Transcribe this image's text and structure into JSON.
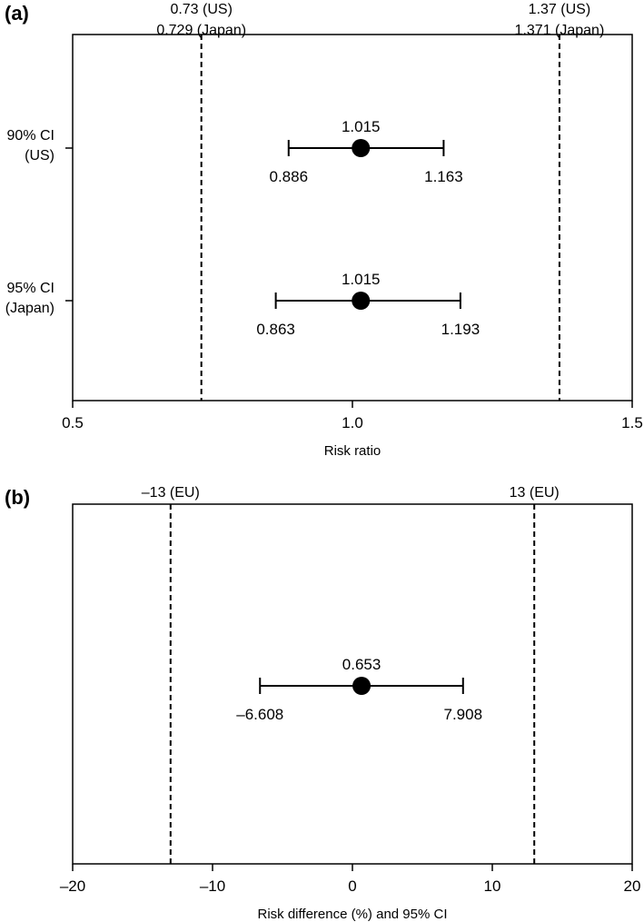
{
  "chart_data": [
    {
      "type": "forest",
      "panel_label": "(a)",
      "xlabel": "Risk ratio",
      "xlim": [
        0.5,
        1.5
      ],
      "xticks": [
        {
          "value": 0.5,
          "label": "0.5"
        },
        {
          "value": 1.0,
          "label": "1.0"
        },
        {
          "value": 1.5,
          "label": "1.5"
        }
      ],
      "reference_lines": [
        {
          "value": 0.73,
          "style": "dashed",
          "labels": [
            "0.73 (US)",
            "0.729 (Japan)"
          ]
        },
        {
          "value": 1.37,
          "style": "dashed",
          "labels": [
            "1.37 (US)",
            "1.371 (Japan)"
          ]
        }
      ],
      "rows": [
        {
          "label_lines": [
            "90% CI",
            "(US)"
          ],
          "estimate": 1.015,
          "lower": 0.886,
          "upper": 1.163,
          "estimate_label": "1.015",
          "lower_label": "0.886",
          "upper_label": "1.163"
        },
        {
          "label_lines": [
            "95% CI",
            "(Japan)"
          ],
          "estimate": 1.015,
          "lower": 0.863,
          "upper": 1.193,
          "estimate_label": "1.015",
          "lower_label": "0.863",
          "upper_label": "1.193"
        }
      ],
      "grid": false
    },
    {
      "type": "forest",
      "panel_label": "(b)",
      "xlabel": "Risk difference (%) and 95% CI",
      "xlim": [
        -20,
        20
      ],
      "xticks": [
        {
          "value": -20,
          "label": "–20"
        },
        {
          "value": -10,
          "label": "–10"
        },
        {
          "value": 0,
          "label": "0"
        },
        {
          "value": 10,
          "label": "10"
        },
        {
          "value": 20,
          "label": "20"
        }
      ],
      "reference_lines": [
        {
          "value": -13,
          "style": "dashed",
          "labels": [
            "–13 (EU)"
          ]
        },
        {
          "value": 13,
          "style": "dashed",
          "labels": [
            "13 (EU)"
          ]
        }
      ],
      "rows": [
        {
          "label_lines": [],
          "estimate": 0.653,
          "lower": -6.608,
          "upper": 7.908,
          "estimate_label": "0.653",
          "lower_label": "–6.608",
          "upper_label": "7.908"
        }
      ],
      "grid": false
    }
  ]
}
